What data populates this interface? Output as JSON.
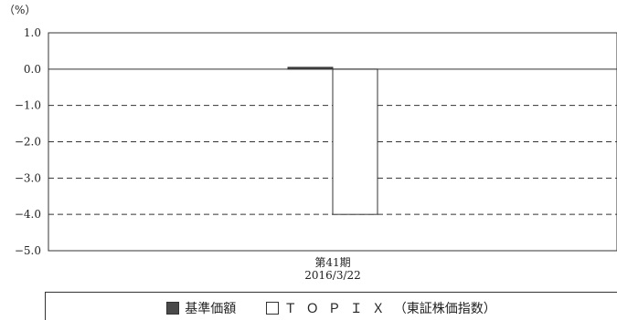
{
  "chart_data": {
    "type": "bar",
    "unit_label": "（%）",
    "categories": [
      {
        "line1": "第41期",
        "line2": "2016/3/22"
      }
    ],
    "series": [
      {
        "name": "基準価額",
        "values": [
          0.05
        ],
        "color": "#4a4a4a",
        "fill": "filled"
      },
      {
        "name": "ＴＯＰＩＸ",
        "values": [
          -4.0
        ],
        "color": "#ffffff",
        "fill": "empty"
      }
    ],
    "ylim": [
      -5.0,
      1.0
    ],
    "yticks": [
      "1.0",
      "0.0",
      "−1.0",
      "−2.0",
      "−3.0",
      "−4.0",
      "−5.0"
    ],
    "grid": "dashed",
    "legend": "bottom",
    "legend_suffix": "（東証株価指数）"
  }
}
